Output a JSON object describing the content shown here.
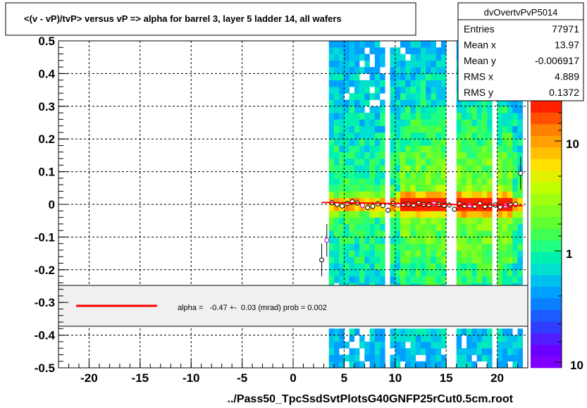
{
  "title": "<(v - vP)/tvP> versus   vP => alpha for barrel 3, layer 5 ladder 14, all wafers",
  "xlabel": "../Pass50_TpcSsdSvtPlotsG40GNFP25rCut0.5cm.root",
  "stats": {
    "name": "dvOvertvPvP5014",
    "rows": [
      {
        "label": "Entries",
        "value": "77971"
      },
      {
        "label": "Mean x",
        "value": "13.97"
      },
      {
        "label": "Mean y",
        "value": "-0.006917"
      },
      {
        "label": "RMS x",
        "value": "4.889"
      },
      {
        "label": "RMS y",
        "value": "0.1372"
      }
    ]
  },
  "fit_legend": "alpha =   -0.47 +-  0.03 (mrad) prob = 0.002",
  "colors": {
    "fit_line": "#ff0000",
    "palette": [
      "#8000ff",
      "#6a00ff",
      "#4f1dff",
      "#2f3dff",
      "#1a5cff",
      "#0a80ff",
      "#00a0ff",
      "#00c0f0",
      "#00e0d0",
      "#00f0b0",
      "#20ff80",
      "#40ff50",
      "#60ff30",
      "#80ff20",
      "#a0ff10",
      "#c0ff00",
      "#e0f000",
      "#ffe000",
      "#ffc000",
      "#ffa000",
      "#ff8000",
      "#ff5000",
      "#ff2000"
    ]
  },
  "chart_data": {
    "type": "heatmap",
    "title": "<(v - vP)/tvP> versus   vP => alpha for barrel 3, layer 5 ladder 14, all wafers",
    "xlabel": "../Pass50_TpcSsdSvtPlotsG40GNFP25rCut0.5cm.root",
    "ylabel": "",
    "xlim": [
      -23,
      23
    ],
    "ylim": [
      -0.5,
      0.5
    ],
    "xticks": [
      -20,
      -15,
      -10,
      -5,
      0,
      5,
      10,
      15,
      20
    ],
    "yticks": [
      -0.5,
      -0.4,
      -0.3,
      -0.2,
      -0.1,
      0,
      0.1,
      0.2,
      0.3,
      0.4,
      0.5
    ],
    "grid": true,
    "colorbar": {
      "scale": "log",
      "ticks": [
        "1",
        "10",
        "10"
      ]
    },
    "filled_x_range": [
      3.5,
      22.5
    ],
    "fit_line": {
      "x": [
        2.8,
        22.5
      ],
      "y": [
        0.006,
        -0.004
      ]
    },
    "profile_points": {
      "x": [
        2.8,
        3.3,
        3.8,
        4.3,
        4.8,
        5.3,
        5.8,
        6.3,
        6.8,
        7.3,
        7.8,
        8.3,
        8.8,
        9.3,
        9.8,
        10.3,
        10.8,
        11.3,
        11.8,
        12.3,
        12.8,
        13.3,
        13.8,
        14.3,
        14.8,
        15.3,
        15.8,
        16.3,
        16.8,
        17.3,
        17.8,
        18.3,
        18.8,
        19.3,
        19.8,
        20.3,
        20.8,
        21.3,
        21.8,
        22.3
      ],
      "y": [
        -0.17,
        -0.11,
        0.005,
        0.0,
        -0.005,
        0.003,
        0.008,
        0.004,
        -0.003,
        -0.01,
        -0.006,
        0.002,
        -0.004,
        -0.018,
        0.003,
        -0.002,
        0.0,
        0.001,
        -0.002,
        0.003,
        0.0,
        -0.001,
        0.002,
        0.0,
        -0.003,
        -0.002,
        -0.015,
        0.001,
        -0.004,
        -0.003,
        -0.005,
        0.002,
        -0.006,
        -0.004,
        -0.002,
        -0.008,
        -0.004,
        -0.002,
        0.0,
        0.095
      ]
    },
    "legend": {
      "placement": "bottom-band",
      "entries": [
        "alpha =   -0.47 +-  0.03 (mrad) prob = 0.002"
      ]
    }
  }
}
